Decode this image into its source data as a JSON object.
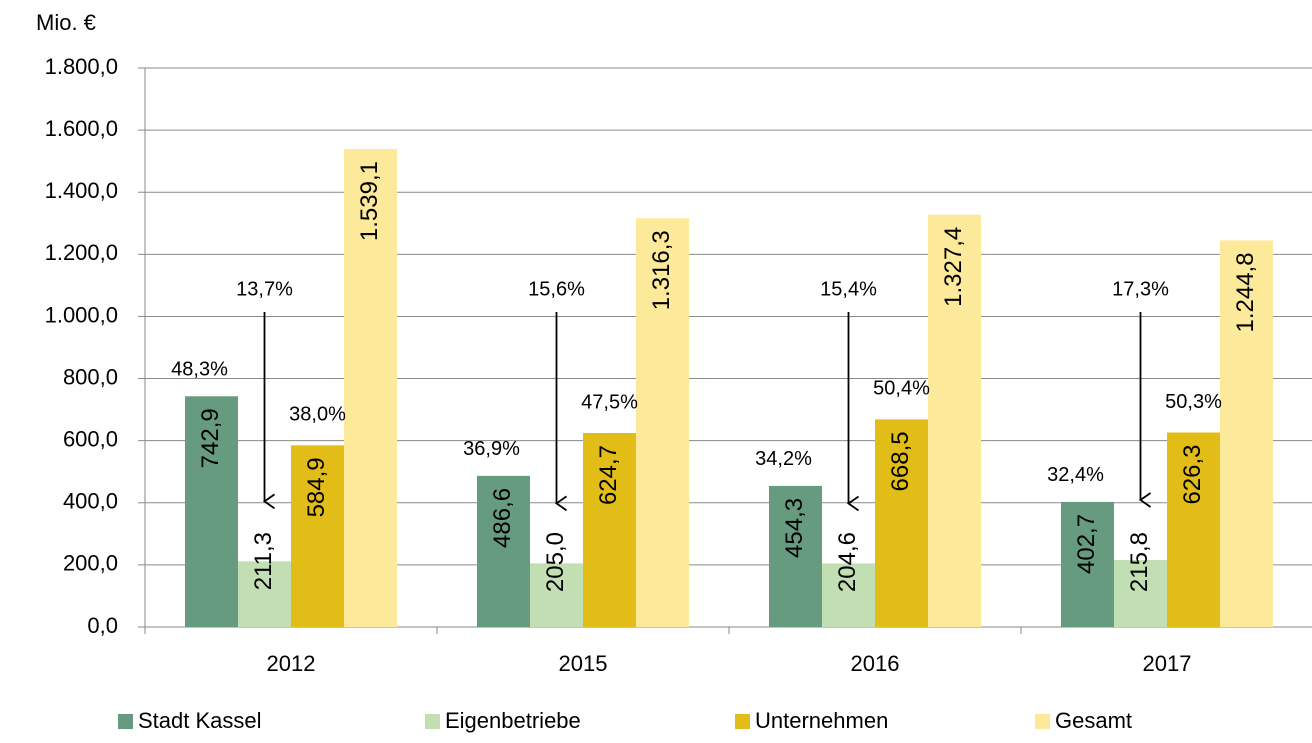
{
  "chart_data": {
    "type": "bar",
    "y_axis_label": "Mio. €",
    "categories": [
      "2012",
      "2015",
      "2016",
      "2017"
    ],
    "series": [
      {
        "name": "Stadt Kassel",
        "color": "#669b80",
        "values": [
          742.9,
          486.6,
          454.3,
          402.7
        ],
        "value_labels": [
          "742,9",
          "486,6",
          "454,3",
          "402,7"
        ],
        "share_labels": [
          "48,3%",
          "36,9%",
          "34,2%",
          "32,4%"
        ]
      },
      {
        "name": "Eigenbetriebe",
        "color": "#c2dfb4",
        "values": [
          211.3,
          205.0,
          204.6,
          215.8
        ],
        "value_labels": [
          "211,3",
          "205,0",
          "204,6",
          "215,8"
        ],
        "share_labels": [
          "13,7%",
          "15,6%",
          "15,4%",
          "17,3%"
        ]
      },
      {
        "name": "Unternehmen",
        "color": "#e2bd17",
        "values": [
          584.9,
          624.7,
          668.5,
          626.3
        ],
        "value_labels": [
          "584,9",
          "624,7",
          "668,5",
          "626,3"
        ],
        "share_labels": [
          "38,0%",
          "47,5%",
          "50,4%",
          "50,3%"
        ]
      },
      {
        "name": "Gesamt",
        "color": "#fde99a",
        "values": [
          1539.1,
          1316.3,
          1327.4,
          1244.8
        ],
        "value_labels": [
          "1.539,1",
          "1.316,3",
          "1.327,4",
          "1.244,8"
        ]
      }
    ],
    "ylim": [
      0,
      1800
    ],
    "yticks": [
      {
        "value": 0,
        "label": "0,0"
      },
      {
        "value": 200,
        "label": "200,0"
      },
      {
        "value": 400,
        "label": "400,0"
      },
      {
        "value": 600,
        "label": "600,0"
      },
      {
        "value": 800,
        "label": "800,0"
      },
      {
        "value": 1000,
        "label": "1.000,0"
      },
      {
        "value": 1200,
        "label": "1.200,0"
      },
      {
        "value": 1400,
        "label": "1.400,0"
      },
      {
        "value": 1600,
        "label": "1.600,0"
      },
      {
        "value": 1800,
        "label": "1.800,0"
      }
    ],
    "grid": true
  }
}
